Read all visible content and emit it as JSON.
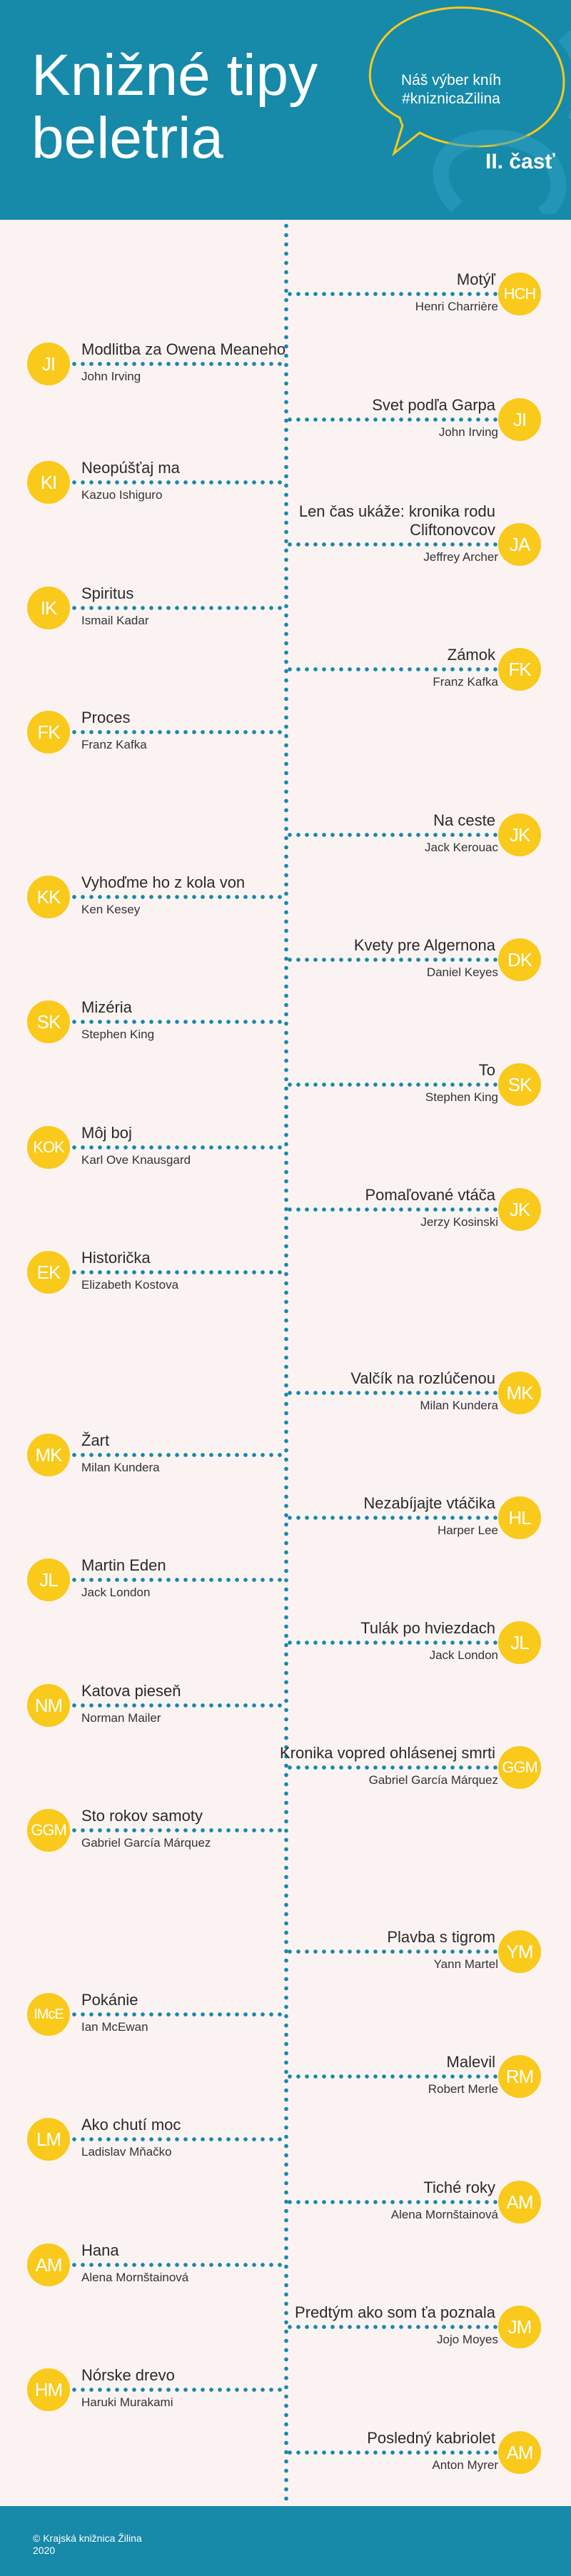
{
  "header": {
    "title_line1": "Knižné tipy",
    "title_line2": "beletria",
    "tag_line1": "Náš výber kníh",
    "tag_line2": "#kniznicaZilina",
    "part": "II. časť"
  },
  "colors": {
    "header_bg": "#1789a9",
    "circle": "#f9c91c",
    "page_bg": "#fbf3f2"
  },
  "books": [
    {
      "side": "right",
      "initials": "HCH",
      "title": "Motýľ",
      "author": "Henri Charrière"
    },
    {
      "side": "left",
      "initials": "JI",
      "title": "Modlitba za Owena Meaneho",
      "author": "John Irving"
    },
    {
      "side": "right",
      "initials": "JI",
      "title": "Svet podľa Garpa",
      "author": "John Irving"
    },
    {
      "side": "left",
      "initials": "KI",
      "title": "Neopúšťaj ma",
      "author": "Kazuo Ishiguro"
    },
    {
      "side": "right",
      "initials": "JA",
      "title": "Len čas ukáže: kronika rodu Cliftonovcov",
      "author": "Jeffrey Archer"
    },
    {
      "side": "left",
      "initials": "IK",
      "title": "Spiritus",
      "author": "Ismail Kadar"
    },
    {
      "side": "right",
      "initials": "FK",
      "title": "Zámok",
      "author": "Franz Kafka"
    },
    {
      "side": "left",
      "initials": "FK",
      "title": "Proces",
      "author": "Franz Kafka"
    },
    {
      "side": "right",
      "initials": "JK",
      "title": "Na ceste",
      "author": "Jack Kerouac"
    },
    {
      "side": "left",
      "initials": "KK",
      "title": "Vyhoďme ho z kola von",
      "author": "Ken Kesey"
    },
    {
      "side": "right",
      "initials": "DK",
      "title": "Kvety pre Algernona",
      "author": "Daniel Keyes"
    },
    {
      "side": "left",
      "initials": "SK",
      "title": "Mizéria",
      "author": "Stephen King"
    },
    {
      "side": "right",
      "initials": "SK",
      "title": "To",
      "author": "Stephen King"
    },
    {
      "side": "left",
      "initials": "KOK",
      "title": "Môj boj",
      "author": "Karl Ove Knausgard"
    },
    {
      "side": "right",
      "initials": "JK",
      "title": "Pomaľované vtáča",
      "author": "Jerzy Kosinski"
    },
    {
      "side": "left",
      "initials": "EK",
      "title": "Historička",
      "author": "Elizabeth Kostova"
    },
    {
      "side": "right",
      "initials": "MK",
      "title": "Valčík na rozlúčenou",
      "author": "Milan Kundera"
    },
    {
      "side": "left",
      "initials": "MK",
      "title": "Žart",
      "author": "Milan Kundera"
    },
    {
      "side": "right",
      "initials": "HL",
      "title": "Nezabíjajte vtáčika",
      "author": "Harper  Lee"
    },
    {
      "side": "left",
      "initials": "JL",
      "title": "Martin Eden",
      "author": "Jack London"
    },
    {
      "side": "right",
      "initials": "JL",
      "title": "Tulák po hviezdach",
      "author": "Jack London"
    },
    {
      "side": "left",
      "initials": "NM",
      "title": "Katova pieseň",
      "author": "Norman Mailer"
    },
    {
      "side": "right",
      "initials": "GGM",
      "title": "Kronika vopred ohlásenej smrti",
      "author": "Gabriel García Márquez"
    },
    {
      "side": "left",
      "initials": "GGM",
      "title": "Sto rokov samoty",
      "author": "Gabriel García Márquez"
    },
    {
      "side": "right",
      "initials": "YM",
      "title": "Plavba s tigrom",
      "author": "Yann Martel"
    },
    {
      "side": "left",
      "initials": "IMcE",
      "title": "Pokánie",
      "author": "Ian McEwan"
    },
    {
      "side": "right",
      "initials": "RM",
      "title": "Malevil",
      "author": "Robert Merle"
    },
    {
      "side": "left",
      "initials": "LM",
      "title": "Ako chutí moc",
      "author": "Ladislav Mňačko"
    },
    {
      "side": "right",
      "initials": "AM",
      "title": "Tiché roky",
      "author": "Alena Mornštainová"
    },
    {
      "side": "left",
      "initials": "AM",
      "title": "Hana",
      "author": "Alena Mornštainová"
    },
    {
      "side": "right",
      "initials": "JM",
      "title": "Predtým ako som ťa poznala",
      "author": "Jojo Moyes"
    },
    {
      "side": "left",
      "initials": "HM",
      "title": "Nórske drevo",
      "author": "Haruki Murakami"
    },
    {
      "side": "right",
      "initials": "AM",
      "title": "Posledný kabriolet",
      "author": "Anton Myrer"
    }
  ],
  "footer": {
    "line1": "© Krajská knižnica Žilina",
    "line2": "2020"
  }
}
